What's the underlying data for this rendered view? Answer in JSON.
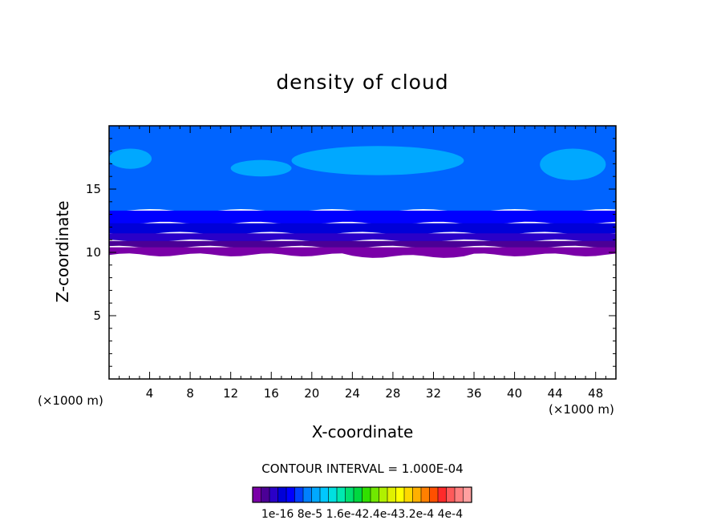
{
  "chart_data": {
    "type": "heatmap",
    "title": "density of cloud",
    "xlabel": "X-coordinate",
    "ylabel": "Z-coordinate",
    "x_scale_label_left": "(×1000 m)",
    "x_scale_label_right": "(×1000 m)",
    "xlim": [
      0,
      50
    ],
    "ylim": [
      0,
      20
    ],
    "x_ticks": [
      4,
      8,
      12,
      16,
      20,
      24,
      28,
      32,
      36,
      40,
      44,
      48
    ],
    "y_ticks": [
      5,
      10,
      15
    ],
    "cloud_base_km": 10,
    "cloud_top_km": 20,
    "bands": [
      {
        "z_bottom": 9.8,
        "z_top": 10.4,
        "level": 0
      },
      {
        "z_bottom": 10.4,
        "z_top": 10.9,
        "level": 1
      },
      {
        "z_bottom": 10.9,
        "z_top": 11.5,
        "level": 2
      },
      {
        "z_bottom": 11.5,
        "z_top": 12.3,
        "level": 3
      },
      {
        "z_bottom": 12.3,
        "z_top": 13.3,
        "level": 4
      },
      {
        "z_bottom": 13.3,
        "z_top": 20.0,
        "level": 5
      }
    ],
    "patches": [
      {
        "x": [
          0,
          4.2
        ],
        "z": [
          16.6,
          18.2
        ],
        "level": 6
      },
      {
        "x": [
          18,
          35
        ],
        "z": [
          16.1,
          18.4
        ],
        "level": 6
      },
      {
        "x": [
          12,
          18
        ],
        "z": [
          16.0,
          17.3
        ],
        "level": 6
      },
      {
        "x": [
          42.5,
          49
        ],
        "z": [
          15.7,
          18.2
        ],
        "level": 6
      }
    ],
    "colorbar": {
      "contour_interval": "CONTOUR INTERVAL = 1.000E-04",
      "colors": [
        "#7a00a8",
        "#4b0096",
        "#2a00c8",
        "#0000d8",
        "#0000ff",
        "#0040ff",
        "#0080ff",
        "#00a8ff",
        "#00c8ff",
        "#00e0e0",
        "#00e8b0",
        "#00e070",
        "#00d840",
        "#30e000",
        "#70e800",
        "#b0f000",
        "#e0f000",
        "#ffff00",
        "#ffd800",
        "#ffb000",
        "#ff8000",
        "#ff5000",
        "#ff2a2a",
        "#ff5a5a",
        "#ff8080",
        "#ffa0a0"
      ],
      "tick_labels": [
        "1e-16",
        "8e-5",
        "1.6e-4",
        "2.4e-4",
        "3.2e-4",
        "4e-4"
      ],
      "tick_text": "1e-16 8e-5 1.6e-42.4e-43.2e-4 4e-4"
    },
    "grid": false
  }
}
